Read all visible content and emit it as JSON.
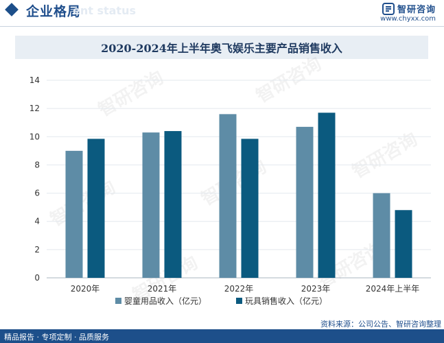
{
  "header": {
    "section_title": "企业格局",
    "ghost_title": "ent status",
    "logo_text": "智研咨询",
    "logo_url": "www.chyxx.com"
  },
  "chart_title": "2020-2024年上半年奥飞娱乐主要产品销售收入",
  "chart_data": {
    "type": "bar",
    "title": "2020-2024年上半年奥飞娱乐主要产品销售收入",
    "categories": [
      "2020年",
      "2021年",
      "2022年",
      "2023年",
      "2024年上半年"
    ],
    "series": [
      {
        "name": "婴童用品收入（亿元）",
        "color": "#5e8ca6",
        "values": [
          9.0,
          10.3,
          11.6,
          10.7,
          6.0
        ]
      },
      {
        "name": "玩具销售收入（亿元）",
        "color": "#0b5a7f",
        "values": [
          9.85,
          10.4,
          9.85,
          11.7,
          4.8
        ]
      }
    ],
    "ylim": [
      0,
      14
    ],
    "yticks": [
      0,
      2,
      4,
      6,
      8,
      10,
      12,
      14
    ],
    "grid": true,
    "legend_position": "bottom"
  },
  "source": "资料来源：公司公告、智研咨询整理",
  "footer": "精品报告 · 专项定制 · 品质服务",
  "watermark_text": "智研咨询"
}
